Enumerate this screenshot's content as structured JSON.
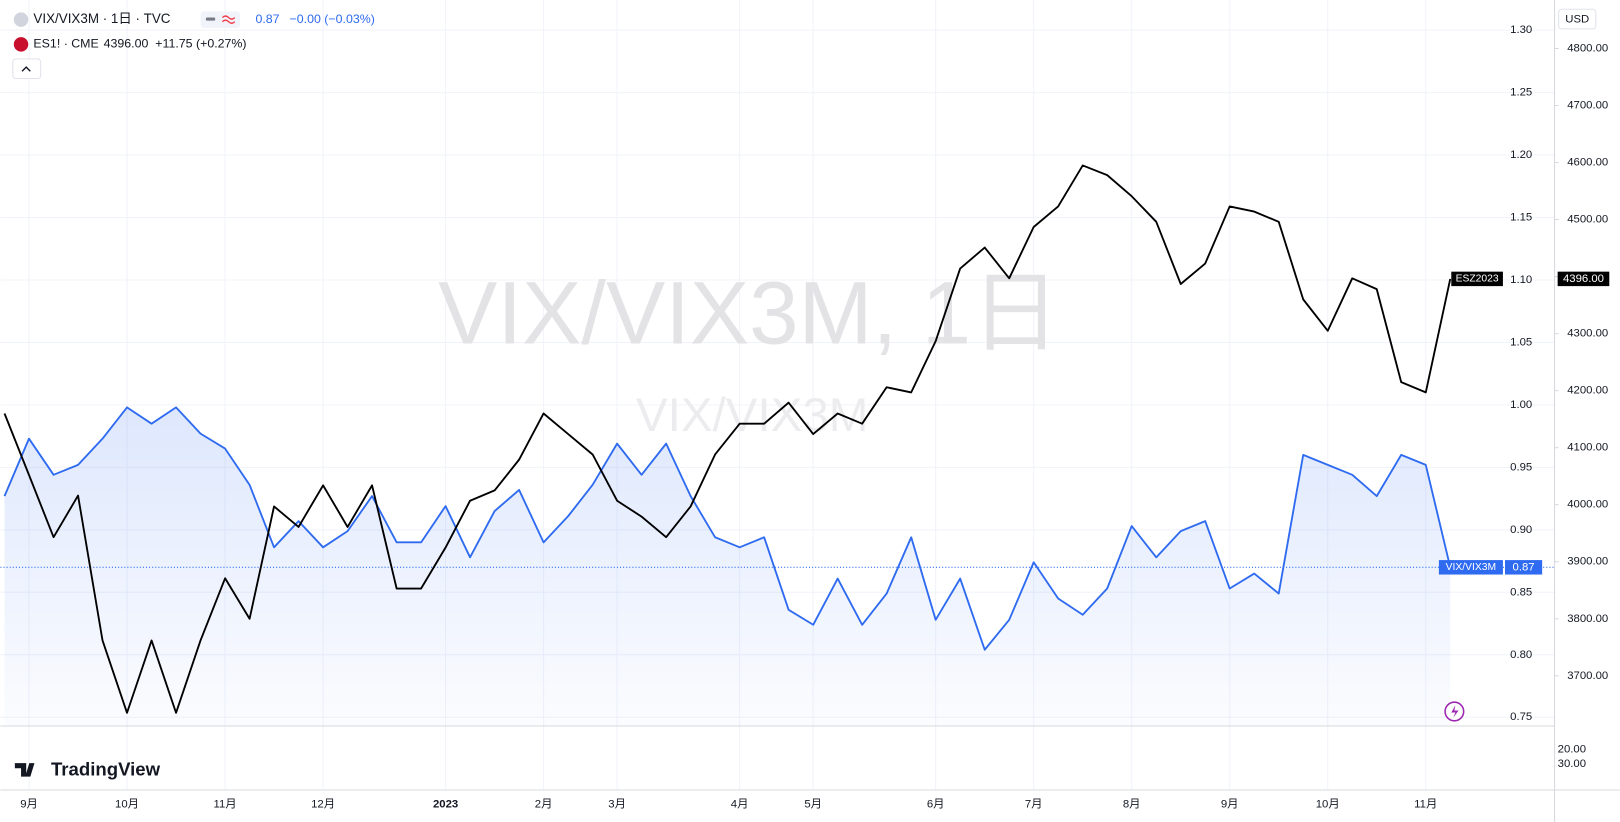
{
  "chart_data": {
    "type": "line",
    "watermark": "VIX/VIX3M, 1日",
    "watermark_sub": "VIX/VIX3M",
    "currency": "USD",
    "brand": "TradingView",
    "categories": [
      null,
      "9月",
      null,
      null,
      null,
      "10月",
      null,
      null,
      null,
      "11月",
      null,
      null,
      null,
      "12月",
      null,
      null,
      null,
      null,
      "2023",
      null,
      null,
      null,
      "2月",
      null,
      null,
      "3月",
      null,
      null,
      null,
      null,
      "4月",
      null,
      null,
      "5月",
      null,
      null,
      null,
      null,
      "6月",
      null,
      null,
      null,
      "7月",
      null,
      null,
      null,
      "8月",
      null,
      null,
      null,
      "9月",
      null,
      null,
      null,
      "10月",
      null,
      null,
      null,
      "11月",
      null
    ],
    "series": [
      {
        "name": "VIX/VIX3M · 1日 · TVC",
        "color": "#2f6bf0",
        "axis": "y",
        "last_label": "0.87",
        "change_label": "−0.00 (−0.03%)",
        "tag": "VIX/VIX3M",
        "values": [
          0.927,
          0.973,
          0.944,
          0.952,
          0.973,
          0.998,
          0.985,
          0.998,
          0.977,
          0.965,
          0.936,
          0.886,
          0.907,
          0.886,
          0.899,
          0.927,
          0.89,
          0.89,
          0.919,
          0.878,
          0.915,
          0.932,
          0.89,
          0.911,
          0.936,
          0.969,
          0.944,
          0.969,
          0.927,
          0.894,
          0.886,
          0.894,
          0.836,
          0.824,
          0.861,
          0.824,
          0.849,
          0.894,
          0.828,
          0.861,
          0.804,
          0.828,
          0.874,
          0.845,
          0.832,
          0.853,
          0.903,
          0.878,
          0.899,
          0.907,
          0.853,
          0.865,
          0.849,
          0.96,
          0.952,
          0.944,
          0.927,
          0.96,
          0.952,
          0.87
        ]
      },
      {
        "name": "ES1! · CME",
        "color": "#000000",
        "axis": "y2",
        "last_label": "4396.00",
        "change_label": "+11.75 (+0.27%)",
        "tag": "ESZ2023",
        "values": [
          4160,
          4052,
          3943,
          4016,
          3762,
          3635,
          3762,
          3635,
          3762,
          3871,
          3800,
          3997,
          3961,
          4034,
          3961,
          4034,
          3853,
          3853,
          3925,
          4007,
          4025,
          4079,
          4160,
          4124,
          4088,
          4007,
          3979,
          3943,
          3997,
          4088,
          4142,
          4142,
          4179,
          4124,
          4160,
          4142,
          4206,
          4197,
          4287,
          4414,
          4451,
          4397,
          4487,
          4523,
          4595,
          4578,
          4541,
          4496,
          4387,
          4423,
          4523,
          4514,
          4496,
          4360,
          4305,
          4397,
          4378,
          4215,
          4197,
          4396
        ]
      }
    ],
    "ylim": [
      0.743,
      1.32
    ],
    "yticks": [
      {
        "value": 0.75,
        "label": "0.75"
      },
      {
        "value": 0.8,
        "label": "0.80"
      },
      {
        "value": 0.85,
        "label": "0.85"
      },
      {
        "value": 0.9,
        "label": "0.90"
      },
      {
        "value": 0.95,
        "label": "0.95"
      },
      {
        "value": 1.0,
        "label": "1.00"
      },
      {
        "value": 1.05,
        "label": "1.05"
      },
      {
        "value": 1.1,
        "label": "1.10"
      },
      {
        "value": 1.15,
        "label": "1.15"
      },
      {
        "value": 1.2,
        "label": "1.20"
      },
      {
        "value": 1.25,
        "label": "1.25"
      },
      {
        "value": 1.3,
        "label": "1.30"
      }
    ],
    "y2lim": [
      3612,
      4876
    ],
    "y2ticks": [
      {
        "value": 3700,
        "label": "3700.00"
      },
      {
        "value": 3800,
        "label": "3800.00"
      },
      {
        "value": 3900,
        "label": "3900.00"
      },
      {
        "value": 4000,
        "label": "4000.00"
      },
      {
        "value": 4100,
        "label": "4100.00"
      },
      {
        "value": 4200,
        "label": "4200.00"
      },
      {
        "value": 4300,
        "label": "4300.00"
      },
      {
        "value": 4400,
        "label": "4400.00"
      },
      {
        "value": 4500,
        "label": "4500.00"
      },
      {
        "value": 4600,
        "label": "4600.00"
      },
      {
        "value": 4700,
        "label": "4700.00"
      },
      {
        "value": 4800,
        "label": "4800.00"
      }
    ],
    "lower_pane_labels": [
      "20.00",
      "30.00"
    ],
    "grid": true
  }
}
